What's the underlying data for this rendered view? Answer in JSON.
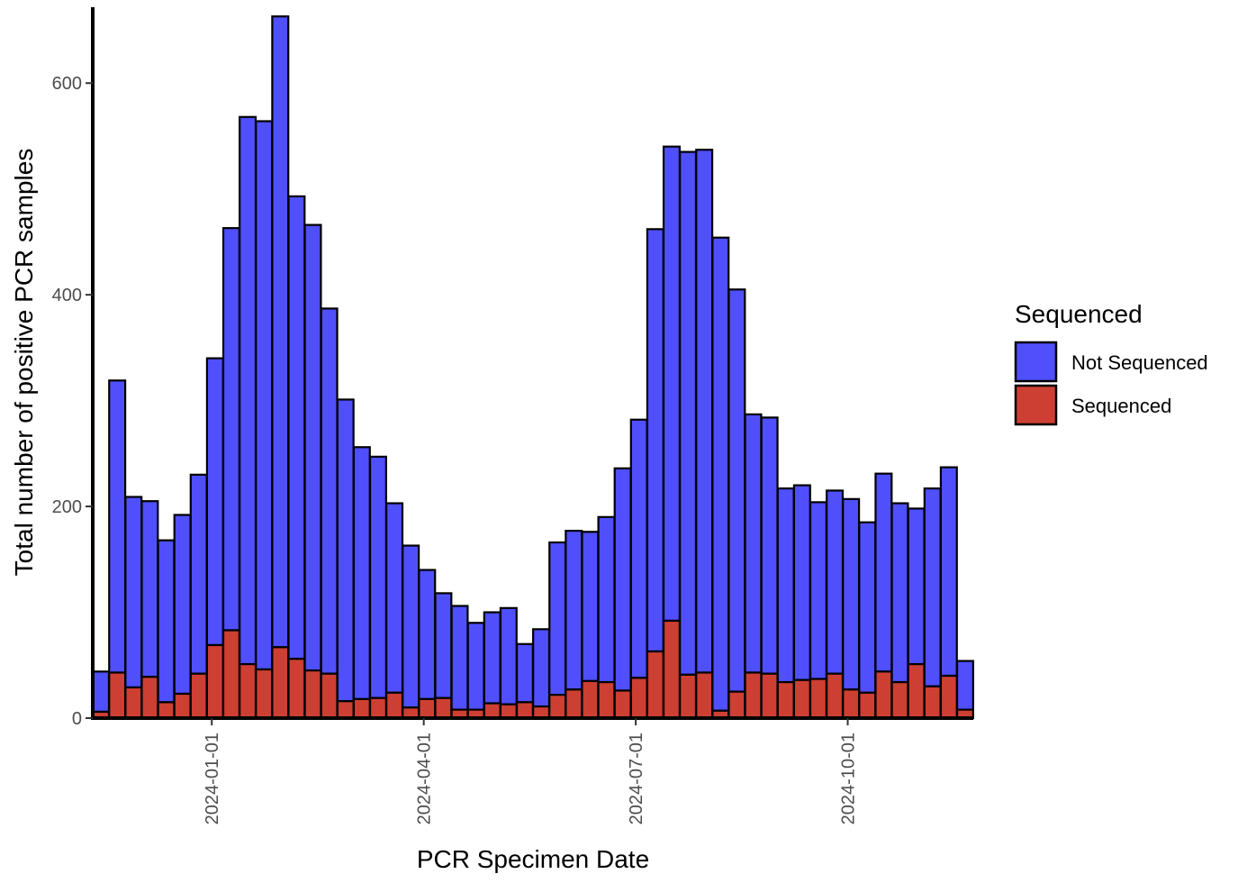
{
  "chart_data": {
    "type": "bar",
    "stacked": true,
    "title": "",
    "xlabel": "PCR Specimen Date",
    "ylabel": "Total number of positive PCR samples",
    "ylim": [
      0,
      670
    ],
    "y_ticks": [
      0,
      200,
      400,
      600
    ],
    "x_ticks": [
      "2024-01-01",
      "2024-04-01",
      "2024-07-01",
      "2024-10-01"
    ],
    "x_tick_index": [
      7.3,
      20.3,
      33.3,
      46.3
    ],
    "grid": false,
    "legend": {
      "title": "Sequenced",
      "position": "right"
    },
    "series": [
      {
        "name": "Not Sequenced",
        "color": "#4f4ffb",
        "totals": [
          44,
          319,
          209,
          205,
          168,
          192,
          230,
          340,
          463,
          568,
          564,
          663,
          493,
          466,
          387,
          301,
          256,
          247,
          203,
          163,
          140,
          118,
          106,
          90,
          100,
          104,
          70,
          84,
          166,
          177,
          176,
          190,
          236,
          282,
          462,
          540,
          535,
          537,
          454,
          405,
          287,
          284,
          217,
          220,
          204,
          215,
          207,
          185,
          231,
          203,
          198,
          217,
          237,
          54
        ]
      },
      {
        "name": "Sequenced",
        "color": "#cd3f32",
        "values": [
          6,
          43,
          29,
          39,
          15,
          23,
          42,
          69,
          83,
          51,
          46,
          67,
          56,
          45,
          42,
          16,
          18,
          19,
          24,
          10,
          18,
          19,
          8,
          8,
          14,
          13,
          15,
          11,
          22,
          27,
          35,
          34,
          26,
          38,
          63,
          92,
          41,
          43,
          7,
          25,
          43,
          42,
          34,
          36,
          37,
          42,
          27,
          24,
          44,
          34,
          51,
          30,
          40,
          8
        ]
      }
    ]
  }
}
